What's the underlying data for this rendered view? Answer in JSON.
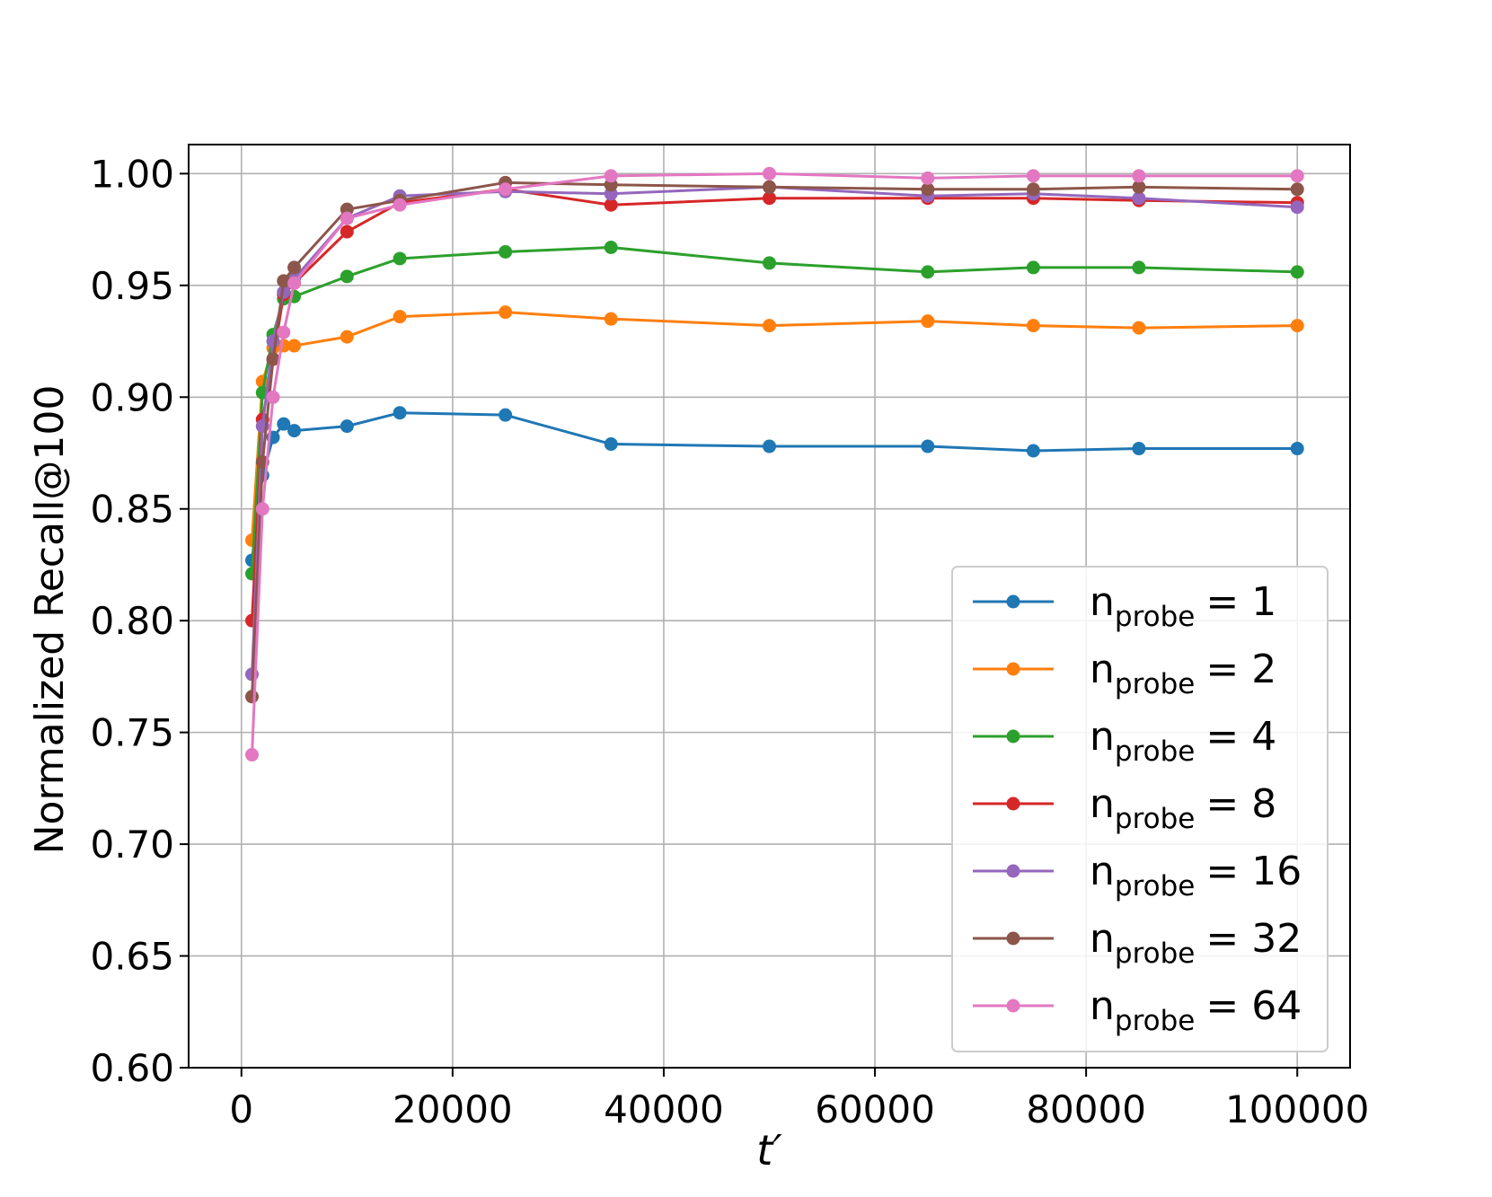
{
  "chart_data": {
    "type": "line",
    "title": "",
    "xlabel": "t′",
    "ylabel": "Normalized Recall@100",
    "xlim": [
      -5000,
      105000
    ],
    "ylim": [
      0.6,
      1.013
    ],
    "xticks": [
      0,
      20000,
      40000,
      60000,
      80000,
      100000
    ],
    "xtick_labels": [
      "0",
      "20000",
      "40000",
      "60000",
      "80000",
      "100000"
    ],
    "yticks": [
      0.6,
      0.65,
      0.7,
      0.75,
      0.8,
      0.85,
      0.9,
      0.95,
      1.0
    ],
    "ytick_labels": [
      "0.60",
      "0.65",
      "0.70",
      "0.75",
      "0.80",
      "0.85",
      "0.90",
      "0.95",
      "1.00"
    ],
    "grid": true,
    "legend_position": "lower-right",
    "legend_label_prefix": "n",
    "legend_label_subscript": "probe",
    "x": [
      1000,
      2000,
      3000,
      4000,
      5000,
      10000,
      15000,
      25000,
      35000,
      50000,
      65000,
      75000,
      85000,
      100000
    ],
    "series": [
      {
        "legend_value": "= 1",
        "color": "#1f77b4",
        "values": [
          0.827,
          0.865,
          0.882,
          0.888,
          0.885,
          0.887,
          0.893,
          0.892,
          0.879,
          0.878,
          0.878,
          0.876,
          0.877,
          0.877
        ]
      },
      {
        "legend_value": "= 2",
        "color": "#ff7f0e",
        "values": [
          0.836,
          0.907,
          0.922,
          0.923,
          0.923,
          0.927,
          0.936,
          0.938,
          0.935,
          0.932,
          0.934,
          0.932,
          0.931,
          0.932
        ]
      },
      {
        "legend_value": "= 4",
        "color": "#2ca02c",
        "values": [
          0.821,
          0.902,
          0.928,
          0.944,
          0.945,
          0.954,
          0.962,
          0.965,
          0.967,
          0.96,
          0.956,
          0.958,
          0.958,
          0.956
        ]
      },
      {
        "legend_value": "= 8",
        "color": "#d62728",
        "values": [
          0.8,
          0.89,
          0.917,
          0.946,
          0.951,
          0.974,
          0.987,
          0.993,
          0.986,
          0.989,
          0.989,
          0.989,
          0.988,
          0.987
        ]
      },
      {
        "legend_value": "= 16",
        "color": "#9467bd",
        "values": [
          0.776,
          0.887,
          0.925,
          0.947,
          0.953,
          0.98,
          0.99,
          0.992,
          0.991,
          0.994,
          0.99,
          0.991,
          0.989,
          0.985
        ]
      },
      {
        "legend_value": "= 32",
        "color": "#8c564b",
        "values": [
          0.766,
          0.871,
          0.917,
          0.952,
          0.958,
          0.984,
          0.988,
          0.996,
          0.995,
          0.994,
          0.993,
          0.993,
          0.994,
          0.993
        ]
      },
      {
        "legend_value": "= 64",
        "color": "#e377c2",
        "values": [
          0.74,
          0.85,
          0.9,
          0.929,
          0.951,
          0.98,
          0.986,
          0.993,
          0.999,
          1.0,
          0.998,
          0.999,
          0.999,
          0.999
        ]
      }
    ]
  }
}
